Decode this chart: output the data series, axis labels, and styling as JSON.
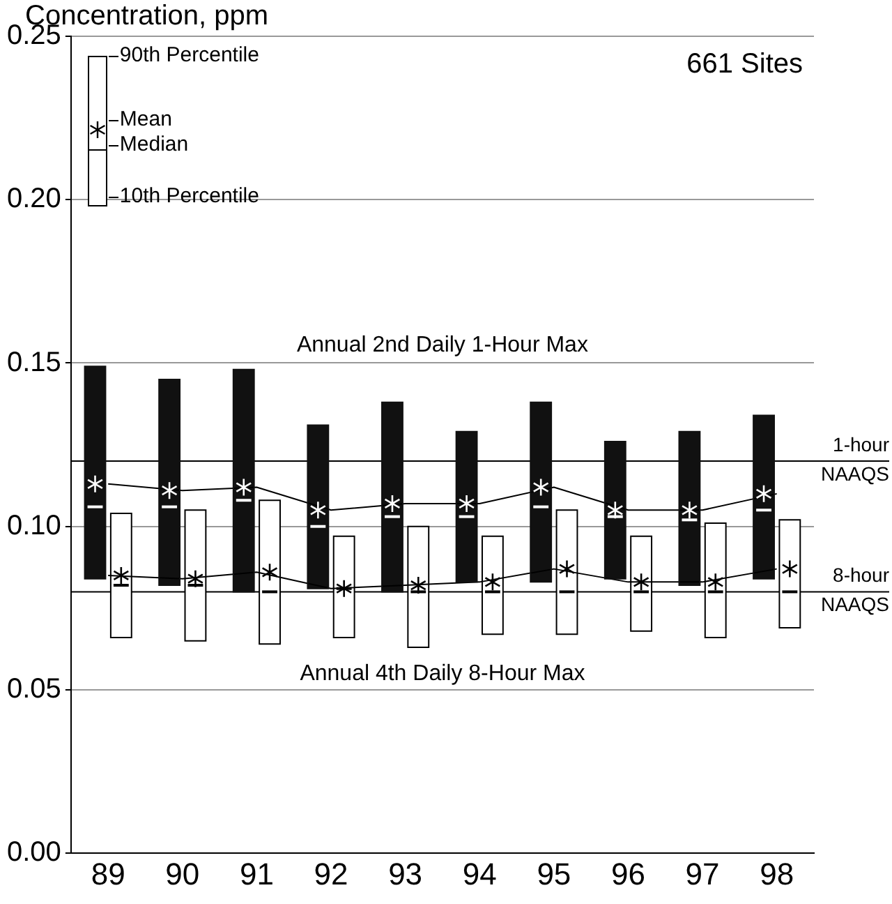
{
  "chart_data": {
    "type": "box",
    "ylabel": "Concentration, ppm",
    "categories": [
      "89",
      "90",
      "91",
      "92",
      "93",
      "94",
      "95",
      "96",
      "97",
      "98"
    ],
    "ylim": [
      0,
      0.25
    ],
    "yticks": [
      {
        "value": 0,
        "label": "0.00"
      },
      {
        "value": 0.05,
        "label": "0.05"
      },
      {
        "value": 0.1,
        "label": "0.10"
      },
      {
        "value": 0.15,
        "label": "0.15"
      },
      {
        "value": 0.2,
        "label": "0.20"
      },
      {
        "value": 0.25,
        "label": "0.25"
      }
    ],
    "grid": "y",
    "series": [
      {
        "color": "#111111",
        "boxes": [
          {
            "low": 0.084,
            "q1": 0.084,
            "median": 0.106,
            "q3": 0.149,
            "high": 0.149,
            "mean": 0.113
          },
          {
            "low": 0.082,
            "q1": 0.082,
            "median": 0.106,
            "q3": 0.145,
            "high": 0.145,
            "mean": 0.111
          },
          {
            "low": 0.08,
            "q1": 0.08,
            "median": 0.108,
            "q3": 0.148,
            "high": 0.148,
            "mean": 0.112
          },
          {
            "low": 0.081,
            "q1": 0.081,
            "median": 0.1,
            "q3": 0.131,
            "high": 0.131,
            "mean": 0.105
          },
          {
            "low": 0.08,
            "q1": 0.08,
            "median": 0.103,
            "q3": 0.138,
            "high": 0.138,
            "mean": 0.107
          },
          {
            "low": 0.083,
            "q1": 0.083,
            "median": 0.103,
            "q3": 0.129,
            "high": 0.129,
            "mean": 0.107
          },
          {
            "low": 0.083,
            "q1": 0.083,
            "median": 0.106,
            "q3": 0.138,
            "high": 0.138,
            "mean": 0.112
          },
          {
            "low": 0.084,
            "q1": 0.084,
            "median": 0.103,
            "q3": 0.126,
            "high": 0.126,
            "mean": 0.105
          },
          {
            "low": 0.082,
            "q1": 0.082,
            "median": 0.102,
            "q3": 0.129,
            "high": 0.129,
            "mean": 0.105
          },
          {
            "low": 0.084,
            "q1": 0.084,
            "median": 0.105,
            "q3": 0.134,
            "high": 0.134,
            "mean": 0.11
          }
        ]
      },
      {
        "color": "#ffffff",
        "boxes": [
          {
            "low": 0.066,
            "q1": 0.066,
            "median": 0.082,
            "q3": 0.104,
            "high": 0.104,
            "mean": 0.085
          },
          {
            "low": 0.065,
            "q1": 0.065,
            "median": 0.082,
            "q3": 0.105,
            "high": 0.105,
            "mean": 0.084
          },
          {
            "low": 0.064,
            "q1": 0.064,
            "median": 0.08,
            "q3": 0.108,
            "high": 0.108,
            "mean": 0.086
          },
          {
            "low": 0.066,
            "q1": 0.066,
            "median": 0.081,
            "q3": 0.097,
            "high": 0.097,
            "mean": 0.081
          },
          {
            "low": 0.063,
            "q1": 0.063,
            "median": 0.08,
            "q3": 0.1,
            "high": 0.1,
            "mean": 0.082
          },
          {
            "low": 0.067,
            "q1": 0.067,
            "median": 0.08,
            "q3": 0.097,
            "high": 0.097,
            "mean": 0.083
          },
          {
            "low": 0.067,
            "q1": 0.067,
            "median": 0.08,
            "q3": 0.105,
            "high": 0.105,
            "mean": 0.087
          },
          {
            "low": 0.068,
            "q1": 0.068,
            "median": 0.08,
            "q3": 0.097,
            "high": 0.097,
            "mean": 0.083
          },
          {
            "low": 0.066,
            "q1": 0.066,
            "median": 0.08,
            "q3": 0.101,
            "high": 0.101,
            "mean": 0.083
          },
          {
            "low": 0.069,
            "q1": 0.069,
            "median": 0.08,
            "q3": 0.102,
            "high": 0.102,
            "mean": 0.087
          }
        ]
      },
      {
        "type": "line",
        "color": "#000000",
        "values": [
          0.113,
          0.111,
          0.112,
          0.105,
          0.107,
          0.107,
          0.112,
          0.105,
          0.105,
          0.11
        ]
      },
      {
        "type": "line",
        "color": "#000000",
        "values": [
          0.085,
          0.084,
          0.086,
          0.081,
          0.082,
          0.083,
          0.087,
          0.083,
          0.083,
          0.087
        ]
      }
    ],
    "marker": "none",
    "ref_lines": [
      {
        "axis": "y",
        "value": 0.12,
        "label": "1-hour NAAQS"
      },
      {
        "axis": "y",
        "value": 0.08,
        "label": "8-hour NAAQS"
      }
    ],
    "annotations": [
      "661 Sites",
      "Annual 2nd Daily 1-Hour Max",
      "Annual 4th Daily 8-Hour Max",
      "90th Percentile",
      "Mean",
      "Median",
      "10th Percentile"
    ]
  }
}
